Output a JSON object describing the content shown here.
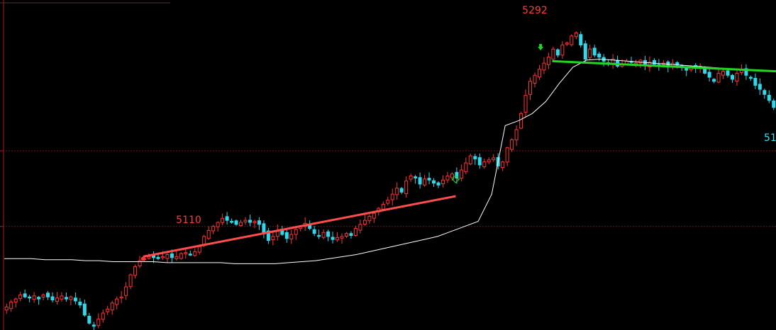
{
  "chart_data": {
    "type": "candlestick",
    "annotations": [
      {
        "text": "5292",
        "color": "#ff3b3b",
        "marks": "high"
      },
      {
        "text": "5110",
        "color": "#ff3b3b",
        "marks": "local-high"
      },
      {
        "text": "51",
        "color": "#2fe4ee",
        "marks": "right-edge-low-clipped"
      }
    ],
    "price_range_estimate": [
      5000,
      5305
    ],
    "reference_levels": [
      5175,
      5100
    ],
    "candle_colors": {
      "up": "#ff3333",
      "down": "#2fd8ea"
    },
    "series": [
      {
        "name": "",
        "kind": "candles",
        "closes": [
          5020,
          5025,
          5028,
          5032,
          5030,
          5029,
          5031,
          5028,
          5032,
          5030,
          5027,
          5029,
          5031,
          5028,
          5030,
          5026,
          5022,
          5012,
          5004,
          5001,
          5008,
          5014,
          5018,
          5024,
          5028,
          5030,
          5040,
          5052,
          5060,
          5066,
          5068,
          5070,
          5069,
          5068,
          5070,
          5072,
          5069,
          5070,
          5073,
          5074,
          5072,
          5075,
          5080,
          5090,
          5096,
          5100,
          5104,
          5108,
          5106,
          5104,
          5102,
          5104,
          5106,
          5104,
          5105,
          5102,
          5094,
          5086,
          5090,
          5096,
          5092,
          5088,
          5092,
          5097,
          5100,
          5103,
          5098,
          5093,
          5091,
          5094,
          5090,
          5087,
          5089,
          5090,
          5093,
          5091,
          5098,
          5102,
          5106,
          5110,
          5113,
          5118,
          5122,
          5126,
          5132,
          5138,
          5134,
          5145,
          5150,
          5148,
          5142,
          5147,
          5146,
          5143,
          5141,
          5146,
          5150,
          5152,
          5148,
          5156,
          5163,
          5170,
          5167,
          5161,
          5164,
          5166,
          5168,
          5160,
          5164,
          5178,
          5186,
          5196,
          5212,
          5230,
          5244,
          5250,
          5256,
          5262,
          5268,
          5276,
          5270,
          5280,
          5282,
          5289,
          5292,
          5280,
          5266,
          5276,
          5270,
          5268,
          5264,
          5262,
          5266,
          5259,
          5261,
          5264,
          5263,
          5262,
          5265,
          5260,
          5263,
          5261,
          5259,
          5262,
          5258,
          5262,
          5260,
          5258,
          5255,
          5258,
          5257,
          5259,
          5252,
          5248,
          5244,
          5252,
          5254,
          5250,
          5246,
          5252,
          5255,
          5250,
          5247,
          5240,
          5236,
          5231,
          5225,
          5218
        ]
      },
      {
        "name": "",
        "kind": "moving-average",
        "color": "#ffffff",
        "values": [
          5068,
          5068,
          5068,
          5067,
          5067,
          5067,
          5066,
          5066,
          5065,
          5065,
          5065,
          5065,
          5064,
          5064,
          5064,
          5064,
          5064,
          5063,
          5063,
          5063,
          5063,
          5064,
          5065,
          5066,
          5068,
          5070,
          5072,
          5075,
          5078,
          5081,
          5084,
          5087,
          5090,
          5095,
          5100,
          5105,
          5132,
          5200,
          5205,
          5212,
          5224,
          5242,
          5258,
          5265,
          5266,
          5265,
          5264,
          5263,
          5262,
          5261,
          5260,
          5259,
          5258,
          5257,
          5256,
          5255,
          5255,
          5254
        ]
      }
    ],
    "trendlines": [
      {
        "color": "#ff4d4d",
        "from": [
          0.18,
          5070
        ],
        "to": [
          0.585,
          5130
        ]
      },
      {
        "color": "#22d622",
        "from": [
          0.71,
          5264
        ],
        "to": [
          1.0,
          5254
        ]
      }
    ],
    "markers": [
      {
        "kind": "dot",
        "color": "#ff3333",
        "at": "trendline-start"
      },
      {
        "kind": "hollow-arrow-down",
        "color": "#22d622",
        "at": "trendline-end"
      },
      {
        "kind": "arrow-down",
        "color": "#22d622",
        "at": "after-high"
      }
    ]
  }
}
